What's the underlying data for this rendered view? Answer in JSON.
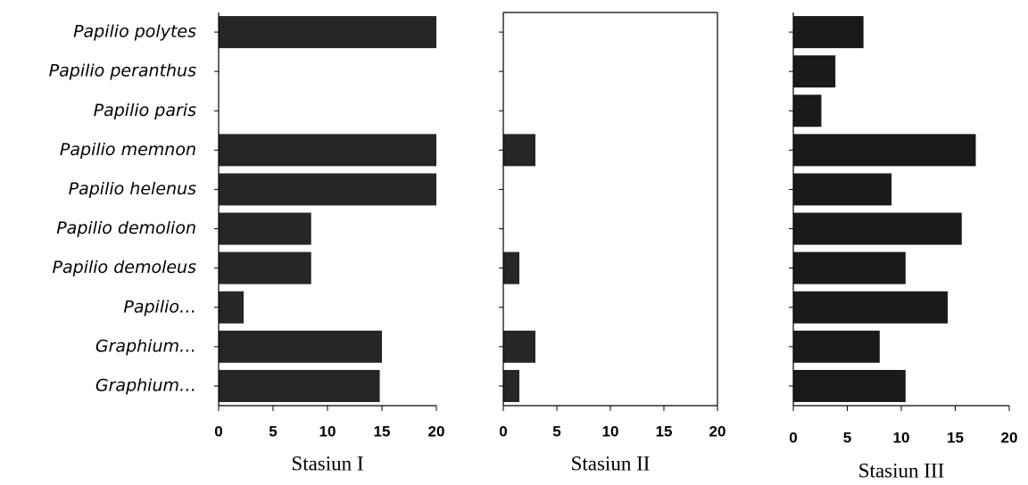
{
  "chart_data": [
    {
      "type": "bar",
      "orientation": "horizontal",
      "color": "#262626",
      "categories": [
        "Papilio polytes",
        "Papilio peranthus",
        "Papilio paris",
        "Papilio memnon",
        "Papilio helenus",
        "Papilio demolion",
        "Papilio demoleus",
        "Papilio…",
        "Graphium…",
        "Graphium…"
      ],
      "values": [
        20,
        0,
        0,
        20,
        20,
        8.5,
        8.5,
        2.3,
        15,
        14.8
      ],
      "xlim": [
        0,
        20
      ],
      "xticks": [
        0,
        5,
        10,
        15,
        20
      ],
      "xlabel": "Stasiun I"
    },
    {
      "type": "bar",
      "orientation": "horizontal",
      "color": "#262626",
      "values": [
        0,
        0,
        0,
        3,
        0,
        0,
        1.5,
        0,
        3,
        1.5
      ],
      "xlim": [
        0,
        20
      ],
      "xticks": [
        0,
        5,
        10,
        15,
        20
      ],
      "xlabel": "Stasiun II"
    },
    {
      "type": "bar",
      "orientation": "horizontal",
      "color": "#1a1a1a",
      "values": [
        6.5,
        3.9,
        2.6,
        16.9,
        9.1,
        15.6,
        10.4,
        14.3,
        8,
        10.4
      ],
      "xlim": [
        0,
        20
      ],
      "xticks": [
        0,
        5,
        10,
        15,
        20
      ],
      "xlabel": "Stasiun III"
    }
  ]
}
